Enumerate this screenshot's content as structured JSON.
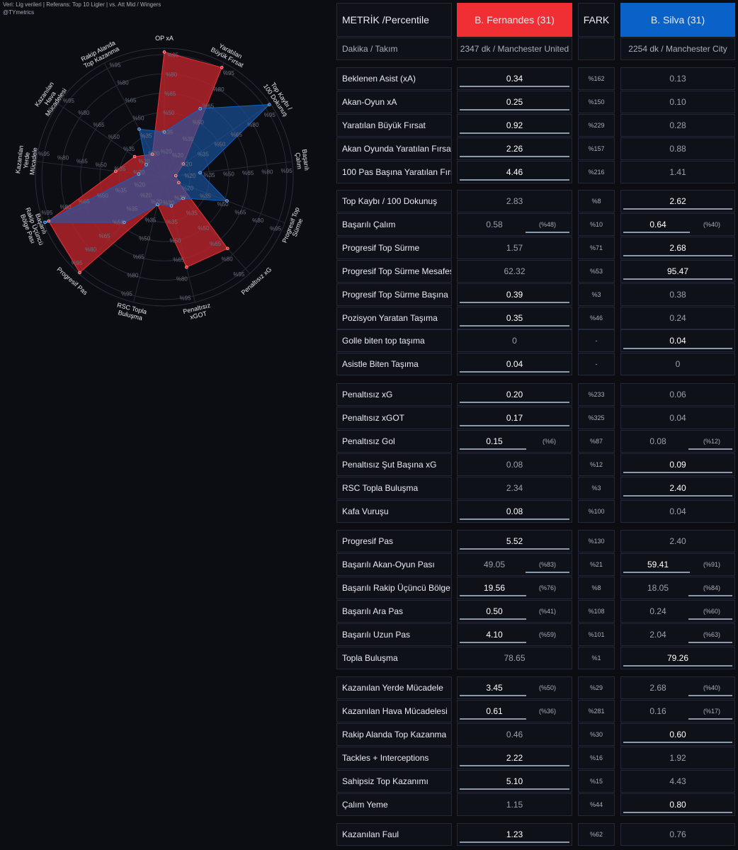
{
  "header": {
    "line1": "Veri: Lig verileri | Referans: Top 10 Ligler | vs. Att Mid / Wingers",
    "line2": "@TYmetrics"
  },
  "colors": {
    "player1": "#ef2f34",
    "player2": "#0a62c9",
    "radar_fill1": "#b3232a",
    "radar_fill2": "#1d5bb0",
    "overlap": "#5b5a9c"
  },
  "chart_data": {
    "type": "radar",
    "axes": [
      "OP xA",
      "Yaratılan\nBüyük Fırsat",
      "Top Kaybı /\n100 Dokunuş",
      "Başarılı\nÇalım",
      "Progresif Top\nSürme",
      "Penaltısız xG",
      "Penaltısız\nxGOT",
      "RSC Topla\nBuluşma",
      "Progresif Pas",
      "Başarılı\nRakip Üçüncü\nBölge Pası",
      "Kazanılan\nYerde\nMücadele",
      "Kazanılan\nHava\nMücadelesi",
      "Rakip Alanda\nTop Kazanma"
    ],
    "ring_labels": [
      "%20",
      "%35",
      "%50",
      "%65",
      "%80",
      "%95"
    ],
    "series": [
      {
        "name": "B. Fernandes (31)",
        "values": [
          97,
          96,
          18,
          9,
          12,
          74,
          72,
          22,
          99,
          96,
          38,
          28,
          20
        ]
      },
      {
        "name": "B. Silva (31)",
        "values": [
          35,
          60,
          99,
          28,
          52,
          22,
          23,
          22,
          47,
          99,
          20,
          17,
          42
        ]
      }
    ],
    "rlim": [
      0,
      100
    ]
  },
  "table": {
    "header": {
      "metric": "METRİK /Percentile",
      "p1": "B. Fernandes (31)",
      "diff": "FARK",
      "p2": "B. Silva (31)"
    },
    "subheader": {
      "metric": "Dakika / Takım",
      "p1": "2347 dk / Manchester United",
      "diff": "",
      "p2": "2254 dk / Manchester City"
    },
    "groups": [
      {
        "rows": [
          {
            "metric": "Beklenen Asist (xA)",
            "p1": "0.34",
            "p1_pct": "",
            "diff": "%162",
            "p2": "0.13",
            "p2_pct": "",
            "winner": 1
          },
          {
            "metric": "Akan-Oyun xA",
            "p1": "0.25",
            "p1_pct": "",
            "diff": "%150",
            "p2": "0.10",
            "p2_pct": "",
            "winner": 1
          },
          {
            "metric": "Yaratılan Büyük Fırsat",
            "p1": "0.92",
            "p1_pct": "",
            "diff": "%229",
            "p2": "0.28",
            "p2_pct": "",
            "winner": 1
          },
          {
            "metric": "Akan Oyunda Yaratılan Fırsat",
            "p1": "2.26",
            "p1_pct": "",
            "diff": "%157",
            "p2": "0.88",
            "p2_pct": "",
            "winner": 1
          },
          {
            "metric": "100 Pas Başına Yaratılan Fırsat",
            "p1": "4.46",
            "p1_pct": "",
            "diff": "%216",
            "p2": "1.41",
            "p2_pct": "",
            "winner": 1
          }
        ]
      },
      {
        "rows": [
          {
            "metric": "Top Kaybı / 100 Dokunuş",
            "p1": "2.83",
            "p1_pct": "",
            "diff": "%8",
            "p2": "2.62",
            "p2_pct": "",
            "winner": 2
          },
          {
            "metric": "Başarılı Çalım",
            "p1": "0.58",
            "p1_pct": "(%48)",
            "diff": "%10",
            "p2": "0.64",
            "p2_pct": "(%40)",
            "winner": 2
          },
          {
            "metric": "Progresif Top Sürme",
            "p1": "1.57",
            "p1_pct": "",
            "diff": "%71",
            "p2": "2.68",
            "p2_pct": "",
            "winner": 2
          },
          {
            "metric": "Progresif Top Sürme Mesafesi",
            "p1": "62.32",
            "p1_pct": "",
            "diff": "%53",
            "p2": "95.47",
            "p2_pct": "",
            "winner": 2
          },
          {
            "metric": "Progresif Top Sürme Başına Mesafe",
            "p1": "0.39",
            "p1_pct": "",
            "diff": "%3",
            "p2": "0.38",
            "p2_pct": "",
            "winner": 1
          },
          {
            "metric": "Pozisyon Yaratan Taşıma",
            "p1": "0.35",
            "p1_pct": "",
            "diff": "%46",
            "p2": "0.24",
            "p2_pct": "",
            "winner": 1
          },
          {
            "metric": "Golle biten top taşıma",
            "p1": "0",
            "p1_pct": "",
            "diff": "-",
            "p2": "0.04",
            "p2_pct": "",
            "winner": 2
          },
          {
            "metric": "Asistle Biten Taşıma",
            "p1": "0.04",
            "p1_pct": "",
            "diff": "-",
            "p2": "0",
            "p2_pct": "",
            "winner": 1
          }
        ]
      },
      {
        "rows": [
          {
            "metric": "Penaltısız xG",
            "p1": "0.20",
            "p1_pct": "",
            "diff": "%233",
            "p2": "0.06",
            "p2_pct": "",
            "winner": 1
          },
          {
            "metric": "Penaltısız xGOT",
            "p1": "0.17",
            "p1_pct": "",
            "diff": "%325",
            "p2": "0.04",
            "p2_pct": "",
            "winner": 1
          },
          {
            "metric": "Penaltısız Gol",
            "p1": "0.15",
            "p1_pct": "(%6)",
            "diff": "%87",
            "p2": "0.08",
            "p2_pct": "(%12)",
            "winner": 1
          },
          {
            "metric": "Penaltısız Şut Başına xG",
            "p1": "0.08",
            "p1_pct": "",
            "diff": "%12",
            "p2": "0.09",
            "p2_pct": "",
            "winner": 2
          },
          {
            "metric": "RSC Topla Buluşma",
            "p1": "2.34",
            "p1_pct": "",
            "diff": "%3",
            "p2": "2.40",
            "p2_pct": "",
            "winner": 2
          },
          {
            "metric": "Kafa Vuruşu",
            "p1": "0.08",
            "p1_pct": "",
            "diff": "%100",
            "p2": "0.04",
            "p2_pct": "",
            "winner": 1
          }
        ]
      },
      {
        "rows": [
          {
            "metric": "Progresif Pas",
            "p1": "5.52",
            "p1_pct": "",
            "diff": "%130",
            "p2": "2.40",
            "p2_pct": "",
            "winner": 1
          },
          {
            "metric": "Başarılı Akan-Oyun Pası",
            "p1": "49.05",
            "p1_pct": "(%83)",
            "diff": "%21",
            "p2": "59.41",
            "p2_pct": "(%91)",
            "winner": 2
          },
          {
            "metric": "Başarılı Rakip Üçüncü Bölge Pası",
            "p1": "19.56",
            "p1_pct": "(%76)",
            "diff": "%8",
            "p2": "18.05",
            "p2_pct": "(%84)",
            "winner": 1
          },
          {
            "metric": "Başarılı Ara Pas",
            "p1": "0.50",
            "p1_pct": "(%41)",
            "diff": "%108",
            "p2": "0.24",
            "p2_pct": "(%60)",
            "winner": 1
          },
          {
            "metric": "Başarılı Uzun Pas",
            "p1": "4.10",
            "p1_pct": "(%59)",
            "diff": "%101",
            "p2": "2.04",
            "p2_pct": "(%63)",
            "winner": 1
          },
          {
            "metric": "Topla Buluşma",
            "p1": "78.65",
            "p1_pct": "",
            "diff": "%1",
            "p2": "79.26",
            "p2_pct": "",
            "winner": 2
          }
        ]
      },
      {
        "rows": [
          {
            "metric": "Kazanılan Yerde Mücadele",
            "p1": "3.45",
            "p1_pct": "(%50)",
            "diff": "%29",
            "p2": "2.68",
            "p2_pct": "(%40)",
            "winner": 1
          },
          {
            "metric": "Kazanılan Hava Mücadelesi",
            "p1": "0.61",
            "p1_pct": "(%36)",
            "diff": "%281",
            "p2": "0.16",
            "p2_pct": "(%17)",
            "winner": 1
          },
          {
            "metric": "Rakip Alanda Top Kazanma",
            "p1": "0.46",
            "p1_pct": "",
            "diff": "%30",
            "p2": "0.60",
            "p2_pct": "",
            "winner": 2
          },
          {
            "metric": "Tackles + Interceptions",
            "p1": "2.22",
            "p1_pct": "",
            "diff": "%16",
            "p2": "1.92",
            "p2_pct": "",
            "winner": 1
          },
          {
            "metric": "Sahipsiz Top Kazanımı",
            "p1": "5.10",
            "p1_pct": "",
            "diff": "%15",
            "p2": "4.43",
            "p2_pct": "",
            "winner": 1
          },
          {
            "metric": "Çalım Yeme",
            "p1": "1.15",
            "p1_pct": "",
            "diff": "%44",
            "p2": "0.80",
            "p2_pct": "",
            "winner": 2
          }
        ]
      },
      {
        "rows": [
          {
            "metric": "Kazanılan Faul",
            "p1": "1.23",
            "p1_pct": "",
            "diff": "%62",
            "p2": "0.76",
            "p2_pct": "",
            "winner": 1
          }
        ]
      }
    ]
  }
}
